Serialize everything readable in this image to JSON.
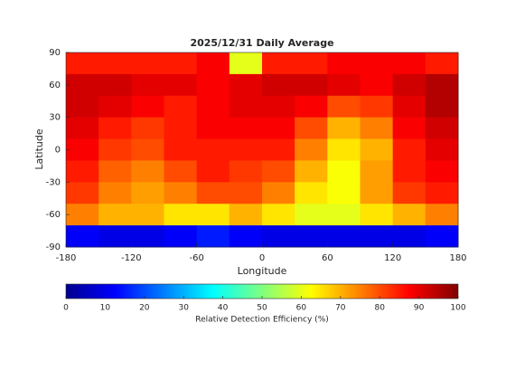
{
  "chart_data": {
    "type": "heatmap",
    "title": "2025/12/31 Daily Average",
    "x_label": "Longitude",
    "y_label": "Latitude",
    "xlim": [
      -180,
      180
    ],
    "ylim": [
      -90,
      90
    ],
    "xticks": [
      -180,
      -120,
      -60,
      0,
      60,
      120,
      180
    ],
    "yticks": [
      -90,
      -60,
      -30,
      0,
      30,
      60,
      90
    ],
    "colormap": "jet",
    "values": [
      [
        85,
        85,
        85,
        85,
        88,
        60,
        85,
        85,
        88,
        88,
        88,
        85
      ],
      [
        92,
        92,
        90,
        90,
        88,
        90,
        92,
        92,
        90,
        88,
        92,
        95
      ],
      [
        92,
        90,
        88,
        85,
        88,
        90,
        90,
        88,
        80,
        82,
        90,
        95
      ],
      [
        90,
        85,
        82,
        85,
        88,
        88,
        88,
        80,
        70,
        75,
        88,
        92
      ],
      [
        88,
        82,
        80,
        85,
        85,
        85,
        85,
        75,
        65,
        70,
        85,
        90
      ],
      [
        85,
        78,
        75,
        80,
        85,
        82,
        80,
        70,
        62,
        72,
        85,
        88
      ],
      [
        82,
        75,
        72,
        75,
        80,
        80,
        75,
        65,
        62,
        72,
        82,
        85
      ],
      [
        75,
        70,
        70,
        65,
        65,
        70,
        65,
        60,
        60,
        65,
        70,
        75
      ],
      [
        12,
        10,
        10,
        12,
        15,
        12,
        10,
        10,
        10,
        10,
        10,
        12
      ]
    ],
    "colorbar": {
      "label": "Relative Detection Efficiency (%)",
      "clim": [
        0,
        100
      ],
      "ticks": [
        0,
        10,
        20,
        30,
        40,
        50,
        60,
        70,
        80,
        90,
        100
      ]
    }
  }
}
